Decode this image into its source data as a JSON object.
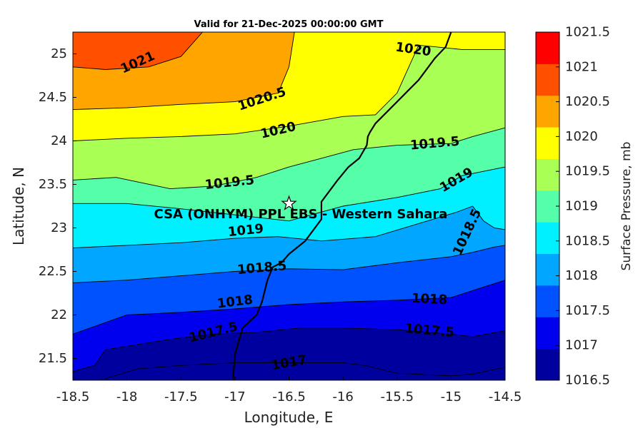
{
  "title": "Valid for 21-Dec-2025 00:00:00 GMT",
  "map": {
    "x_label": "Longitude, E",
    "y_label": "Latitude, N",
    "xlim": [
      -18.5,
      -14.5
    ],
    "ylim": [
      21.25,
      25.25
    ],
    "x_ticks": [
      "-18.5",
      "-18",
      "-17.5",
      "-17",
      "-16.5",
      "-16",
      "-15.5",
      "-15",
      "-14.5"
    ],
    "y_ticks": [
      "21.5",
      "22",
      "22.5",
      "23",
      "23.5",
      "24",
      "24.5",
      "25"
    ],
    "site_label": "CSA (ONHYM) PPL EBS  - Western Sahara",
    "site_location": {
      "lon": -16.5,
      "lat": 23.28
    },
    "contour_labels": [
      {
        "text": "1021",
        "lon": -17.9,
        "lat": 24.9,
        "angle": -24
      },
      {
        "text": "1020.5",
        "lon": -16.75,
        "lat": 24.48,
        "angle": -18
      },
      {
        "text": "1020",
        "lon": -15.35,
        "lat": 25.05,
        "angle": 8
      },
      {
        "text": "1020",
        "lon": -16.6,
        "lat": 24.12,
        "angle": -13
      },
      {
        "text": "1019.5",
        "lon": -15.15,
        "lat": 23.97,
        "angle": -5
      },
      {
        "text": "1019.5",
        "lon": -17.05,
        "lat": 23.52,
        "angle": -6
      },
      {
        "text": "1019",
        "lon": -14.95,
        "lat": 23.55,
        "angle": -30
      },
      {
        "text": "1019",
        "lon": -16.9,
        "lat": 22.97,
        "angle": -6
      },
      {
        "text": "1018.5",
        "lon": -14.85,
        "lat": 22.95,
        "angle": -65
      },
      {
        "text": "1018.5",
        "lon": -16.75,
        "lat": 22.54,
        "angle": -5
      },
      {
        "text": "1018",
        "lon": -15.2,
        "lat": 22.18,
        "angle": 3
      },
      {
        "text": "1018",
        "lon": -17.0,
        "lat": 22.15,
        "angle": -7
      },
      {
        "text": "1017.5",
        "lon": -15.2,
        "lat": 21.82,
        "angle": 5
      },
      {
        "text": "1017.5",
        "lon": -17.2,
        "lat": 21.8,
        "angle": -14
      },
      {
        "text": "1017",
        "lon": -16.5,
        "lat": 21.45,
        "angle": -10
      }
    ]
  },
  "colorbar": {
    "label": "Surface Pressure, mb",
    "levels": [
      "1016.5",
      "1017",
      "1017.5",
      "1018",
      "1018.5",
      "1019",
      "1019.5",
      "1020",
      "1020.5",
      "1021",
      "1021.5"
    ],
    "colors": [
      "#00009f",
      "#0000ef",
      "#0052ff",
      "#00a6ff",
      "#00f0ff",
      "#55ffaa",
      "#aaff55",
      "#ffff00",
      "#ffa500",
      "#ff5000",
      "#ff0000"
    ]
  },
  "chart_data": {
    "type": "heatmap",
    "title": "Valid for 21-Dec-2025 00:00:00 GMT",
    "xlabel": "Longitude, E",
    "ylabel": "Latitude, N",
    "xlim": [
      -18.5,
      -14.5
    ],
    "ylim": [
      21.25,
      25.25
    ],
    "contour_levels": [
      1016.5,
      1017,
      1017.5,
      1018,
      1018.5,
      1019,
      1019.5,
      1020,
      1020.5,
      1021,
      1021.5
    ],
    "isobars": [
      {
        "level": 1021,
        "lon": [
          -18.5,
          -18.2,
          -17.8,
          -17.5,
          -17.3
        ],
        "lat": [
          24.85,
          24.82,
          24.85,
          24.97,
          25.25
        ]
      },
      {
        "level": 1020.5,
        "lon": [
          -18.5,
          -18.0,
          -17.5,
          -17.0,
          -16.6,
          -16.5,
          -16.45
        ],
        "lat": [
          24.36,
          24.38,
          24.42,
          24.45,
          24.55,
          24.85,
          25.25
        ]
      },
      {
        "level": 1020,
        "lon": [
          -18.5,
          -18.0,
          -17.5,
          -17.0,
          -16.5,
          -16.0,
          -15.7,
          -15.5,
          -15.3,
          -14.9,
          -14.5
        ],
        "lat": [
          24.0,
          24.03,
          24.05,
          24.08,
          24.17,
          24.28,
          24.3,
          24.55,
          25.1,
          25.05,
          25.05
        ]
      },
      {
        "level": 1019.5,
        "lon": [
          -18.5,
          -18.1,
          -17.6,
          -17.2,
          -16.8,
          -16.5,
          -16.2,
          -15.9,
          -15.5,
          -15.0,
          -14.8,
          -14.5
        ],
        "lat": [
          23.55,
          23.58,
          23.45,
          23.48,
          23.58,
          23.7,
          23.8,
          23.9,
          23.95,
          23.97,
          24.05,
          24.15
        ]
      },
      {
        "level": 1019,
        "lon": [
          -18.5,
          -18.0,
          -17.5,
          -17.0,
          -16.5,
          -16.0,
          -15.5,
          -15.1,
          -14.9,
          -14.5
        ],
        "lat": [
          23.28,
          23.28,
          23.22,
          23.15,
          23.08,
          23.25,
          23.35,
          23.45,
          23.6,
          23.7
        ]
      },
      {
        "level": 1018.5,
        "lon": [
          -18.5,
          -18.0,
          -17.5,
          -17.0,
          -16.6,
          -16.2,
          -15.7,
          -15.3,
          -14.95,
          -14.8,
          -14.7,
          -14.6,
          -14.5
        ],
        "lat": [
          22.77,
          22.8,
          22.83,
          22.88,
          22.9,
          22.85,
          22.9,
          23.05,
          23.18,
          23.25,
          23.08,
          23.0,
          22.98
        ]
      },
      {
        "level": 1018,
        "lon": [
          -18.5,
          -18.0,
          -17.5,
          -17.0,
          -16.5,
          -16.0,
          -15.5,
          -15.0,
          -14.8,
          -14.6,
          -14.5
        ],
        "lat": [
          22.37,
          22.4,
          22.45,
          22.5,
          22.53,
          22.52,
          22.6,
          22.67,
          22.72,
          22.78,
          22.8
        ]
      },
      {
        "level": 1017.5,
        "lon": [
          -18.5,
          -18.0,
          -17.5,
          -17.0,
          -16.5,
          -16.0,
          -15.5,
          -15.0,
          -14.8,
          -14.5
        ],
        "lat": [
          21.78,
          22.0,
          22.03,
          22.07,
          22.12,
          22.15,
          22.17,
          22.2,
          22.28,
          22.4
        ]
      },
      {
        "level": 1017,
        "lon": [
          -18.5,
          -18.3,
          -18.2,
          -17.6,
          -17.2,
          -16.8,
          -16.4,
          -16.0,
          -15.5,
          -15.0,
          -14.8,
          -14.5
        ],
        "lat": [
          21.35,
          21.42,
          21.6,
          21.72,
          21.78,
          21.8,
          21.85,
          21.85,
          21.83,
          21.78,
          21.75,
          21.82
        ]
      },
      {
        "level": 1016.5,
        "lon": [
          -18.25,
          -17.9,
          -17.5,
          -17.0,
          -16.5,
          -16.0,
          -15.8,
          -15.5,
          -15.0,
          -14.8,
          -14.5
        ],
        "lat": [
          21.25,
          21.38,
          21.42,
          21.45,
          21.45,
          21.45,
          21.42,
          21.33,
          21.3,
          21.32,
          21.4
        ]
      }
    ],
    "coastline": {
      "lon": [
        -17.02,
        -17.0,
        -16.93,
        -16.8,
        -16.75,
        -16.7,
        -16.65,
        -16.57,
        -16.5,
        -16.35,
        -16.2,
        -16.2,
        -16.05,
        -15.95,
        -15.85,
        -15.78,
        -15.77,
        -15.75,
        -15.7,
        -15.5,
        -15.3,
        -15.15,
        -15.05,
        -15.0
      ],
      "lat": [
        21.25,
        21.55,
        21.85,
        22.0,
        22.15,
        22.4,
        22.55,
        22.6,
        22.7,
        22.85,
        23.1,
        23.3,
        23.55,
        23.7,
        23.8,
        23.95,
        24.05,
        24.1,
        24.2,
        24.45,
        24.7,
        24.95,
        25.08,
        25.25
      ]
    },
    "site": {
      "name": "CSA (ONHYM) PPL EBS  - Western Sahara",
      "lon": -16.5,
      "lat": 23.28
    },
    "colorbar_label": "Surface Pressure, mb"
  }
}
